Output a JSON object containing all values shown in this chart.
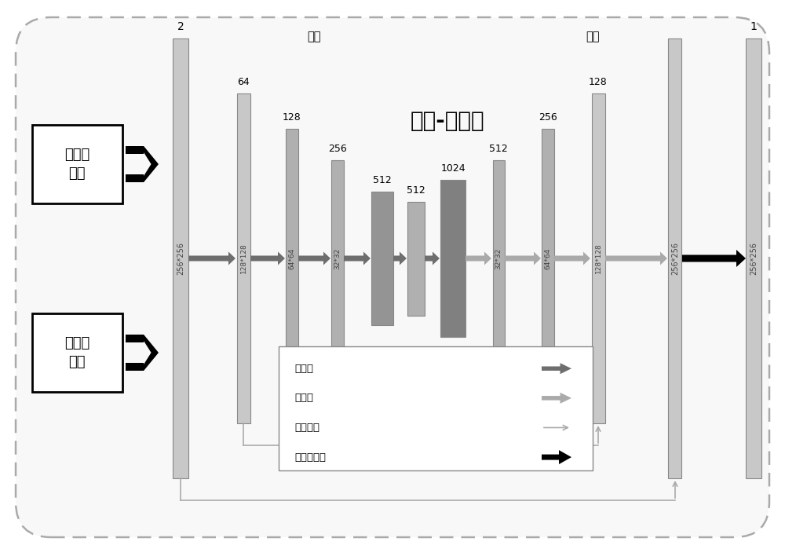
{
  "title": "编码-解码器",
  "encode_label": "编码",
  "decode_label": "解码",
  "input1_label": "变化域\n数据",
  "input2_label": "射空域\n数据",
  "num_left": "2",
  "num_right": "1",
  "legend_items": [
    "下采样",
    "上采样",
    "跳线连接",
    "最后反卷积"
  ],
  "c_light": "#c8c8c8",
  "c_mid": "#b0b0b0",
  "c_dark": "#949494",
  "c_darker": "#808080",
  "arrow_down": "#6e6e6e",
  "arrow_up": "#aaaaaa",
  "arrow_skip": "#aaaaaa",
  "arrow_final": "#111111",
  "bg": "#f8f8f8"
}
